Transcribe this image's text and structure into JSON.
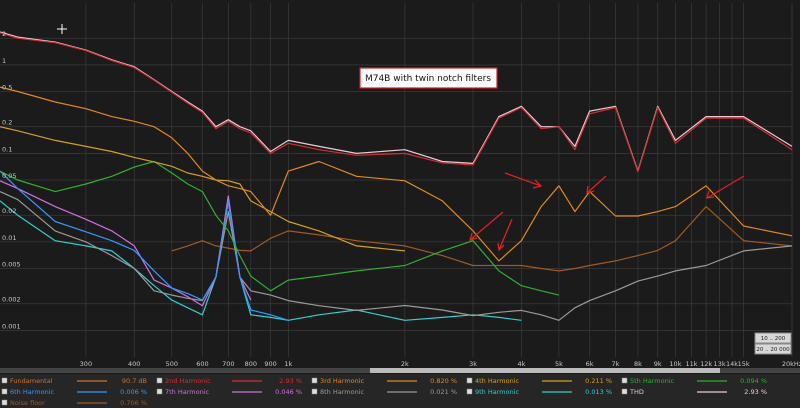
{
  "chart_data": {
    "type": "line",
    "annotation": "M74B with twin notch filters",
    "xscale": "log",
    "yscale": "log",
    "grid": true,
    "xlim": [
      180,
      20000
    ],
    "ylim": [
      0.0005,
      5
    ],
    "xticks": [
      300,
      400,
      500,
      600,
      700,
      800,
      900,
      {
        "value": 1000,
        "label": "1k"
      },
      {
        "value": 2000,
        "label": "2k"
      },
      {
        "value": 3000,
        "label": "3k"
      },
      {
        "value": 4000,
        "label": "4k"
      },
      {
        "value": 5000,
        "label": "5k"
      },
      {
        "value": 6000,
        "label": "6k"
      },
      {
        "value": 7000,
        "label": "7k"
      },
      {
        "value": 8000,
        "label": "8k"
      },
      {
        "value": 9000,
        "label": "9k"
      },
      {
        "value": 10000,
        "label": "10k"
      },
      {
        "value": 11000,
        "label": "11k"
      },
      {
        "value": 12000,
        "label": "12k"
      },
      {
        "value": 13000,
        "label": "13k"
      },
      {
        "value": 14000,
        "label": "14k"
      },
      {
        "value": 15000,
        "label": "15k"
      },
      {
        "value": 20000,
        "label": "20kHz"
      }
    ],
    "yticks": [
      2,
      1,
      0.5,
      0.2,
      0.1,
      0.05,
      0.02,
      0.01,
      0.005,
      0.002,
      0.001
    ],
    "x": [
      180,
      200,
      250,
      300,
      350,
      400,
      450,
      500,
      550,
      600,
      650,
      700,
      750,
      800,
      900,
      1000,
      1200,
      1500,
      2000,
      2500,
      3000,
      3500,
      4000,
      4500,
      5000,
      5500,
      6000,
      7000,
      8000,
      9000,
      10000,
      12000,
      15000,
      20000
    ],
    "series": [
      {
        "name": "Fundamental",
        "reading": "90.7 dB",
        "color": "#d07030",
        "values": [
          null,
          null,
          null,
          null,
          null,
          null,
          null,
          null,
          null,
          null,
          null,
          null,
          null,
          null,
          null,
          null,
          null,
          null,
          null,
          null,
          null,
          null,
          null,
          null,
          null,
          null,
          null,
          null,
          null,
          null,
          null,
          null,
          null,
          null
        ]
      },
      {
        "name": "2nd Harmonic",
        "reading": "2.93 %",
        "color": "#d03030",
        "values": [
          2.3,
          2.0,
          1.78,
          1.45,
          1.12,
          0.93,
          0.67,
          0.49,
          0.37,
          0.29,
          0.19,
          0.23,
          0.19,
          0.17,
          0.1,
          0.13,
          0.11,
          0.095,
          0.1,
          0.078,
          0.074,
          0.25,
          0.33,
          0.19,
          0.2,
          0.11,
          0.28,
          0.33,
          0.062,
          0.33,
          0.13,
          0.25,
          0.25,
          0.11
        ]
      },
      {
        "name": "3rd Harmonic",
        "reading": "0.820 %",
        "color": "#e08a1e",
        "values": [
          0.56,
          0.5,
          0.38,
          0.32,
          0.26,
          0.23,
          0.2,
          0.15,
          0.1,
          0.063,
          0.05,
          0.043,
          0.04,
          0.037,
          0.02,
          0.063,
          0.081,
          0.055,
          0.049,
          0.029,
          0.0133,
          0.0061,
          0.0103,
          0.025,
          0.043,
          0.022,
          0.037,
          0.0196,
          0.0196,
          0.022,
          0.025,
          0.043,
          0.0151,
          0.0117
        ]
      },
      {
        "name": "4th Harmonic",
        "reading": "0.211 %",
        "color": "#d4a020",
        "values": [
          0.2,
          0.18,
          0.14,
          0.12,
          0.105,
          0.09,
          0.08,
          0.0715,
          0.06,
          0.055,
          0.05,
          0.049,
          0.045,
          0.029,
          0.022,
          0.017,
          0.0133,
          0.009,
          0.0079,
          null,
          null,
          null,
          null,
          null,
          null,
          null,
          null,
          null,
          null,
          null,
          null,
          null,
          null,
          null
        ]
      },
      {
        "name": "5th Harmonic",
        "reading": "0.094 %",
        "color": "#30b030",
        "values": [
          0.063,
          0.05,
          0.037,
          0.045,
          0.055,
          0.07,
          0.081,
          0.06,
          0.045,
          0.037,
          0.02,
          0.0133,
          0.007,
          0.0041,
          0.0028,
          0.0037,
          0.0041,
          0.0047,
          0.0054,
          0.0079,
          0.0103,
          0.0047,
          0.0032,
          0.0028,
          0.0025,
          null,
          null,
          null,
          null,
          null,
          null,
          null,
          null,
          null
        ]
      },
      {
        "name": "6th Harmonic",
        "reading": "0.006 %",
        "color": "#3399ff",
        "values": [
          0.063,
          0.04,
          0.017,
          0.013,
          0.0103,
          0.008,
          0.0047,
          0.003,
          0.0026,
          0.0022,
          0.004,
          0.029,
          0.004,
          0.0017,
          0.0015,
          0.0013,
          null,
          null,
          null,
          null,
          null,
          null,
          null,
          null,
          null,
          null,
          null,
          null,
          null,
          null,
          null,
          null,
          null,
          null
        ]
      },
      {
        "name": "7th Harmonic",
        "reading": "0.046 %",
        "color": "#d070e0",
        "values": [
          0.049,
          0.04,
          0.025,
          0.018,
          0.0133,
          0.009,
          0.0037,
          0.003,
          0.0024,
          0.0019,
          0.004,
          0.033,
          0.004,
          0.0022,
          null,
          null,
          null,
          null,
          null,
          null,
          null,
          null,
          null,
          null,
          null,
          null,
          null,
          null,
          null,
          null,
          null,
          null,
          null,
          null
        ]
      },
      {
        "name": "8th Harmonic",
        "reading": "0.021 %",
        "color": "#9a9a9a",
        "values": [
          0.037,
          0.03,
          0.0133,
          0.01,
          0.007,
          0.005,
          0.0028,
          0.0025,
          0.0023,
          0.00217,
          0.004,
          0.022,
          0.004,
          0.0028,
          0.0025,
          0.00217,
          0.0019,
          0.00168,
          0.00191,
          0.0017,
          0.00147,
          0.0016,
          0.00168,
          0.0015,
          0.0013,
          0.0018,
          0.00217,
          0.0028,
          0.0036,
          0.0041,
          0.0047,
          0.0054,
          0.0079,
          0.009
        ]
      },
      {
        "name": "9th Harmonic",
        "reading": "0.013 %",
        "color": "#30d0d0",
        "values": [
          0.029,
          0.02,
          0.0103,
          0.009,
          0.0079,
          0.005,
          0.0032,
          0.0022,
          0.0018,
          0.0015,
          0.004,
          0.029,
          0.004,
          0.0015,
          0.0014,
          0.0013,
          0.0015,
          0.0017,
          0.0013,
          0.0014,
          0.0015,
          0.0014,
          0.0013,
          null,
          null,
          null,
          null,
          null,
          null,
          null,
          null,
          null,
          null,
          null
        ]
      },
      {
        "name": "THD",
        "reading": "2.93 %",
        "color": "#f0c8d8",
        "values": [
          2.35,
          2.06,
          1.81,
          1.47,
          1.14,
          0.95,
          0.68,
          0.5,
          0.38,
          0.3,
          0.2,
          0.24,
          0.2,
          0.18,
          0.105,
          0.14,
          0.12,
          0.1,
          0.11,
          0.081,
          0.077,
          0.26,
          0.34,
          0.2,
          0.2,
          0.12,
          0.3,
          0.34,
          0.063,
          0.34,
          0.14,
          0.26,
          0.26,
          0.12
        ]
      },
      {
        "name": "Noise floor",
        "reading": "0.706 %",
        "color": "#a05a20",
        "values": [
          null,
          null,
          null,
          null,
          null,
          null,
          null,
          0.0079,
          0.009,
          0.0103,
          0.009,
          0.0085,
          0.008,
          0.0079,
          0.011,
          0.0133,
          0.012,
          0.0103,
          0.009,
          0.007,
          0.0054,
          0.0054,
          0.0054,
          0.005,
          0.0047,
          0.005,
          0.0054,
          0.0061,
          0.007,
          0.008,
          0.0103,
          0.025,
          0.0103,
          0.009
        ]
      }
    ]
  },
  "controls": [
    "10 .. 200",
    "20 .. 20 000"
  ]
}
